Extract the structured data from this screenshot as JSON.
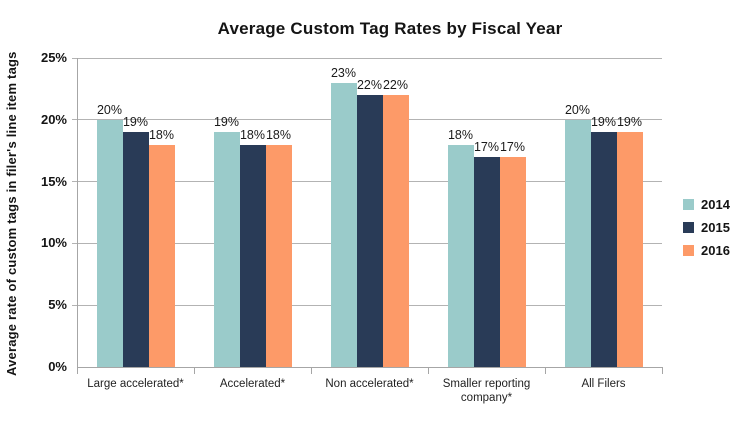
{
  "title": "Average Custom Tag Rates by Fiscal Year",
  "chart_data": {
    "type": "bar",
    "title": "Average Custom Tag Rates by Fiscal Year",
    "categories": [
      "Large accelerated*",
      "Accelerated*",
      "Non accelerated*",
      "Smaller reporting company*",
      "All Filers"
    ],
    "series": [
      {
        "name": "2014",
        "color": "#9acbca",
        "values": [
          20,
          19,
          23,
          18,
          20
        ]
      },
      {
        "name": "2015",
        "color": "#293b57",
        "values": [
          19,
          18,
          22,
          17,
          19
        ]
      },
      {
        "name": "2016",
        "color": "#fd9a68",
        "values": [
          18,
          18,
          22,
          17,
          19
        ]
      }
    ],
    "xlabel": "",
    "ylabel": "Average rate of custom tags in filer's line item tags",
    "ylim": [
      0,
      25
    ],
    "ytick_step": 5,
    "ytick_labels": [
      "0%",
      "5%",
      "10%",
      "15%",
      "20%",
      "25%"
    ],
    "value_suffix": "%",
    "data_labels": true,
    "grid": true,
    "legend_position": "right",
    "legend_entries": [
      "2014",
      "2015",
      "2016"
    ]
  }
}
